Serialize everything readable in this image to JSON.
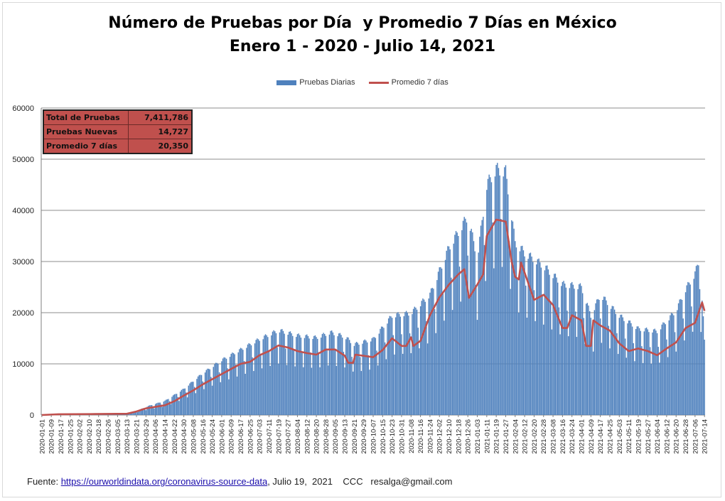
{
  "title": {
    "line1": "Número de Pruebas por Día  y Promedio 7 Días en México",
    "line2": "Enero 1 - 2020 - Julio 14, 2021"
  },
  "legend": {
    "bars": "Pruebas Diarias",
    "line": "Promedio 7 días"
  },
  "stats": [
    {
      "label": "Total de Pruebas",
      "value": "7,411,786"
    },
    {
      "label": "Pruebas Nuevas",
      "value": "14,727"
    },
    {
      "label": "Promedio 7 días",
      "value": "20,350"
    }
  ],
  "source": {
    "prefix": "Fuente: ",
    "link": "https://ourworldindata.org/coronavirus-source-data",
    "suffix": ", Julio 19,  2021    CCC   resalga@gmail.com"
  },
  "colors": {
    "bars": "#4f81bd",
    "line": "#c0504d",
    "grid": "#8c8c8c"
  },
  "chart_data": {
    "type": "bar",
    "ylim": [
      0,
      60000
    ],
    "yticks": [
      0,
      10000,
      20000,
      30000,
      40000,
      50000,
      60000
    ],
    "grid": true,
    "legend_position": "top",
    "x_start": "2020-01-01",
    "x_end": "2021-07-14",
    "tick_labels": [
      "2020-01-01",
      "2020-01-09",
      "2020-01-17",
      "2020-01-25",
      "2020-02-02",
      "2020-02-10",
      "2020-02-18",
      "2020-02-26",
      "2020-03-05",
      "2020-03-13",
      "2020-03-21",
      "2020-03-29",
      "2020-04-06",
      "2020-04-14",
      "2020-04-22",
      "2020-04-30",
      "2020-05-08",
      "2020-05-16",
      "2020-05-24",
      "2020-06-01",
      "2020-06-09",
      "2020-06-17",
      "2020-06-25",
      "2020-07-03",
      "2020-07-11",
      "2020-07-19",
      "2020-07-27",
      "2020-08-04",
      "2020-08-12",
      "2020-08-20",
      "2020-08-28",
      "2020-09-05",
      "2020-09-13",
      "2020-09-21",
      "2020-09-29",
      "2020-10-07",
      "2020-10-15",
      "2020-10-23",
      "2020-10-31",
      "2020-11-08",
      "2020-11-16",
      "2020-11-24",
      "2020-12-02",
      "2020-12-10",
      "2020-12-18",
      "2020-12-26",
      "2021-01-03",
      "2021-01-11",
      "2021-01-19",
      "2021-01-27",
      "2021-02-04",
      "2021-02-12",
      "2021-02-20",
      "2021-02-28",
      "2021-03-08",
      "2021-03-16",
      "2021-03-24",
      "2021-04-01",
      "2021-04-09",
      "2021-04-17",
      "2021-04-25",
      "2021-05-03",
      "2021-05-11",
      "2021-05-19",
      "2021-05-27",
      "2021-06-04",
      "2021-06-12",
      "2021-06-20",
      "2021-06-28",
      "2021-07-06",
      "2021-07-14"
    ],
    "series": [
      {
        "name": "Pruebas Diarias",
        "kind": "bar",
        "points": [
          [
            "2020-01-01",
            0
          ],
          [
            "2020-01-15",
            150
          ],
          [
            "2020-02-15",
            250
          ],
          [
            "2020-03-10",
            300
          ],
          [
            "2020-03-20",
            700
          ],
          [
            "2020-04-01",
            1800
          ],
          [
            "2020-04-14",
            2700
          ],
          [
            "2020-04-30",
            5000
          ],
          [
            "2020-05-16",
            8000
          ],
          [
            "2020-06-01",
            10500
          ],
          [
            "2020-06-17",
            12500
          ],
          [
            "2020-07-03",
            14500
          ],
          [
            "2020-07-19",
            16200
          ],
          [
            "2020-08-04",
            15200
          ],
          [
            "2020-08-20",
            14800
          ],
          [
            "2020-09-01",
            15800
          ],
          [
            "2020-09-13",
            15000
          ],
          [
            "2020-09-21",
            13500
          ],
          [
            "2020-10-07",
            14500
          ],
          [
            "2020-10-23",
            19000
          ],
          [
            "2020-11-08",
            19500
          ],
          [
            "2020-11-24",
            23000
          ],
          [
            "2020-12-10",
            32000
          ],
          [
            "2020-12-26",
            38000
          ],
          [
            "2021-01-03",
            30000
          ],
          [
            "2021-01-11",
            44000
          ],
          [
            "2021-01-19",
            47000
          ],
          [
            "2021-01-27",
            46500
          ],
          [
            "2021-02-04",
            33000
          ],
          [
            "2021-02-12",
            31000
          ],
          [
            "2021-02-28",
            28500
          ],
          [
            "2021-03-16",
            25000
          ],
          [
            "2021-04-01",
            24500
          ],
          [
            "2021-04-09",
            19000
          ],
          [
            "2021-04-17",
            23000
          ],
          [
            "2021-05-03",
            19000
          ],
          [
            "2021-05-19",
            16500
          ],
          [
            "2021-06-04",
            16000
          ],
          [
            "2021-06-20",
            20000
          ],
          [
            "2021-06-28",
            24000
          ],
          [
            "2021-07-06",
            27000
          ],
          [
            "2021-07-10",
            30000
          ],
          [
            "2021-07-14",
            14727
          ]
        ]
      },
      {
        "name": "Promedio 7 días",
        "kind": "line",
        "points": [
          [
            "2020-01-01",
            0
          ],
          [
            "2020-01-15",
            150
          ],
          [
            "2020-02-15",
            200
          ],
          [
            "2020-03-13",
            250
          ],
          [
            "2020-03-21",
            700
          ],
          [
            "2020-03-29",
            1300
          ],
          [
            "2020-04-14",
            1900
          ],
          [
            "2020-04-22",
            2700
          ],
          [
            "2020-04-30",
            3800
          ],
          [
            "2020-05-08",
            4800
          ],
          [
            "2020-05-16",
            6000
          ],
          [
            "2020-05-24",
            7000
          ],
          [
            "2020-06-01",
            8000
          ],
          [
            "2020-06-09",
            9000
          ],
          [
            "2020-06-17",
            10000
          ],
          [
            "2020-06-25",
            10400
          ],
          [
            "2020-07-03",
            11700
          ],
          [
            "2020-07-11",
            12500
          ],
          [
            "2020-07-19",
            13600
          ],
          [
            "2020-07-27",
            13200
          ],
          [
            "2020-08-04",
            12500
          ],
          [
            "2020-08-12",
            12100
          ],
          [
            "2020-08-20",
            11800
          ],
          [
            "2020-08-28",
            12800
          ],
          [
            "2020-09-05",
            12800
          ],
          [
            "2020-09-13",
            11600
          ],
          [
            "2020-09-16",
            10200
          ],
          [
            "2020-09-20",
            10200
          ],
          [
            "2020-09-22",
            11800
          ],
          [
            "2020-10-07",
            11300
          ],
          [
            "2020-10-15",
            12700
          ],
          [
            "2020-10-23",
            15000
          ],
          [
            "2020-10-31",
            13500
          ],
          [
            "2020-11-04",
            13500
          ],
          [
            "2020-11-08",
            15200
          ],
          [
            "2020-11-10",
            13500
          ],
          [
            "2020-11-16",
            14500
          ],
          [
            "2020-11-24",
            19500
          ],
          [
            "2020-12-02",
            23000
          ],
          [
            "2020-12-10",
            25500
          ],
          [
            "2020-12-18",
            27500
          ],
          [
            "2020-12-23",
            28500
          ],
          [
            "2020-12-27",
            22900
          ],
          [
            "2021-01-03",
            25500
          ],
          [
            "2021-01-08",
            27500
          ],
          [
            "2021-01-11",
            35000
          ],
          [
            "2021-01-19",
            38200
          ],
          [
            "2021-01-27",
            37800
          ],
          [
            "2021-02-01",
            30000
          ],
          [
            "2021-02-04",
            27000
          ],
          [
            "2021-02-07",
            26500
          ],
          [
            "2021-02-09",
            29800
          ],
          [
            "2021-02-14",
            26500
          ],
          [
            "2021-02-20",
            22500
          ],
          [
            "2021-02-28",
            23500
          ],
          [
            "2021-03-08",
            21500
          ],
          [
            "2021-03-16",
            17000
          ],
          [
            "2021-03-20",
            17000
          ],
          [
            "2021-03-24",
            19500
          ],
          [
            "2021-04-01",
            18500
          ],
          [
            "2021-04-05",
            13500
          ],
          [
            "2021-04-09",
            13500
          ],
          [
            "2021-04-11",
            18500
          ],
          [
            "2021-04-17",
            17500
          ],
          [
            "2021-04-25",
            16500
          ],
          [
            "2021-05-03",
            14000
          ],
          [
            "2021-05-11",
            12500
          ],
          [
            "2021-05-19",
            13000
          ],
          [
            "2021-05-27",
            12500
          ],
          [
            "2021-06-04",
            11700
          ],
          [
            "2021-06-12",
            13000
          ],
          [
            "2021-06-20",
            14200
          ],
          [
            "2021-06-28",
            17000
          ],
          [
            "2021-07-06",
            18000
          ],
          [
            "2021-07-12",
            22000
          ],
          [
            "2021-07-14",
            20350
          ]
        ]
      }
    ]
  }
}
